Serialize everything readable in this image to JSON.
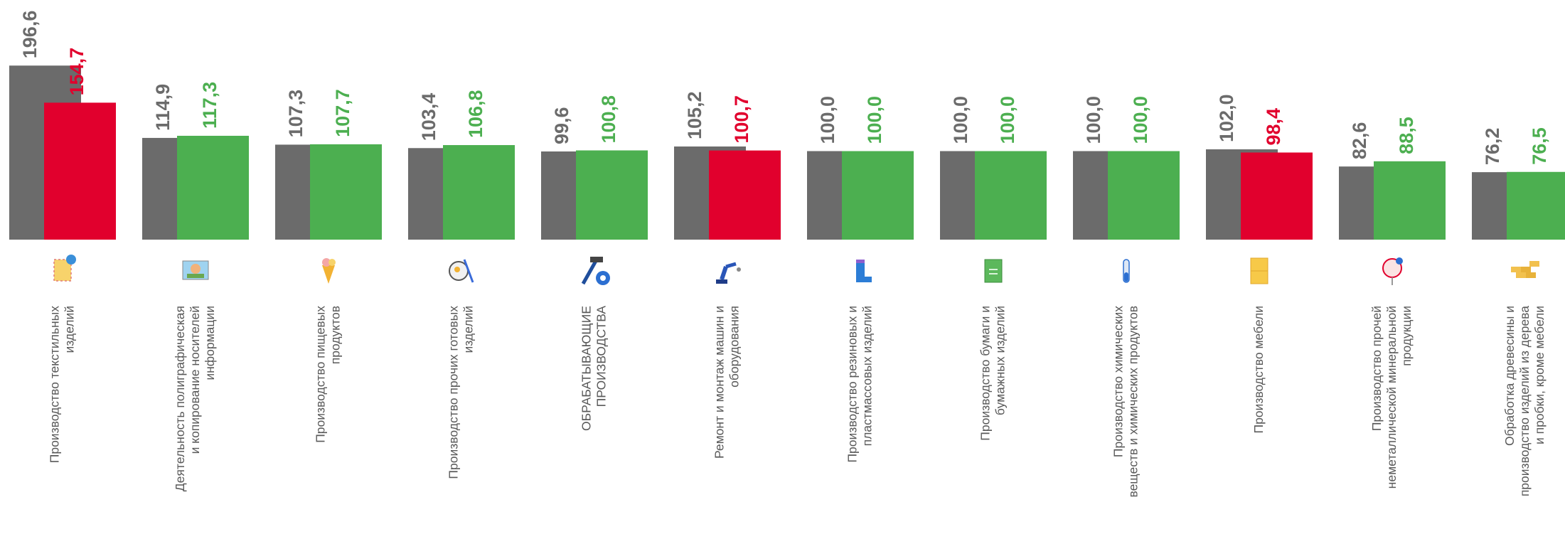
{
  "colors": {
    "prev": "#6b6b6b",
    "up": "#4caf50",
    "down": "#e1002d"
  },
  "chart_data": {
    "type": "bar",
    "categories": [
      [
        "Производство текстильных",
        "изделий"
      ],
      [
        "Деятельность полиграфическая",
        "и копирование носителей",
        "информации"
      ],
      [
        "Производство пищевых",
        "продуктов"
      ],
      [
        "Производство прочих готовых",
        "изделий"
      ],
      [
        "ОБРАБАТЫВАЮЩИЕ",
        "ПРОИЗВОДСТВА"
      ],
      [
        "Ремонт и монтаж машин и",
        "оборудования"
      ],
      [
        "Производство резиновых и",
        "пластмассовых изделий"
      ],
      [
        "Производство бумаги и",
        "бумажных изделий"
      ],
      [
        "Производство химических",
        "веществ и химических продуктов"
      ],
      [
        "Производство мебели"
      ],
      [
        "Производство прочей",
        "неметаллической минеральной",
        "продукции"
      ],
      [
        "Обработка древесины и",
        "производство изделий из дерева",
        "и пробки, кроме мебели"
      ]
    ],
    "icons": [
      "textile-icon",
      "printing-icon",
      "food-icon",
      "finished-goods-icon",
      "manufacturing-icon",
      "robot-arm-icon",
      "rubber-boot-icon",
      "paper-icon",
      "chemistry-icon",
      "furniture-icon",
      "mineral-icon",
      "wood-icon"
    ],
    "series": [
      {
        "values": [
          196.6,
          114.9,
          107.3,
          103.4,
          99.6,
          105.2,
          100.0,
          100.0,
          100.0,
          102.0,
          82.6,
          76.2
        ]
      },
      {
        "values": [
          154.7,
          117.3,
          107.7,
          106.8,
          100.8,
          100.7,
          100.0,
          100.0,
          100.0,
          98.4,
          88.5,
          76.5
        ]
      }
    ],
    "labels": [
      [
        "196,6",
        "114,9",
        "107,3",
        "103,4",
        "99,6",
        "105,2",
        "100,0",
        "100,0",
        "100,0",
        "102,0",
        "82,6",
        "76,2"
      ],
      [
        "154,7",
        "117,3",
        "107,7",
        "106,8",
        "100,8",
        "100,7",
        "100,0",
        "100,0",
        "100,0",
        "98,4",
        "88,5",
        "76,5"
      ]
    ],
    "ylim": [
      0,
      200
    ],
    "legend": "none",
    "grid": false
  }
}
